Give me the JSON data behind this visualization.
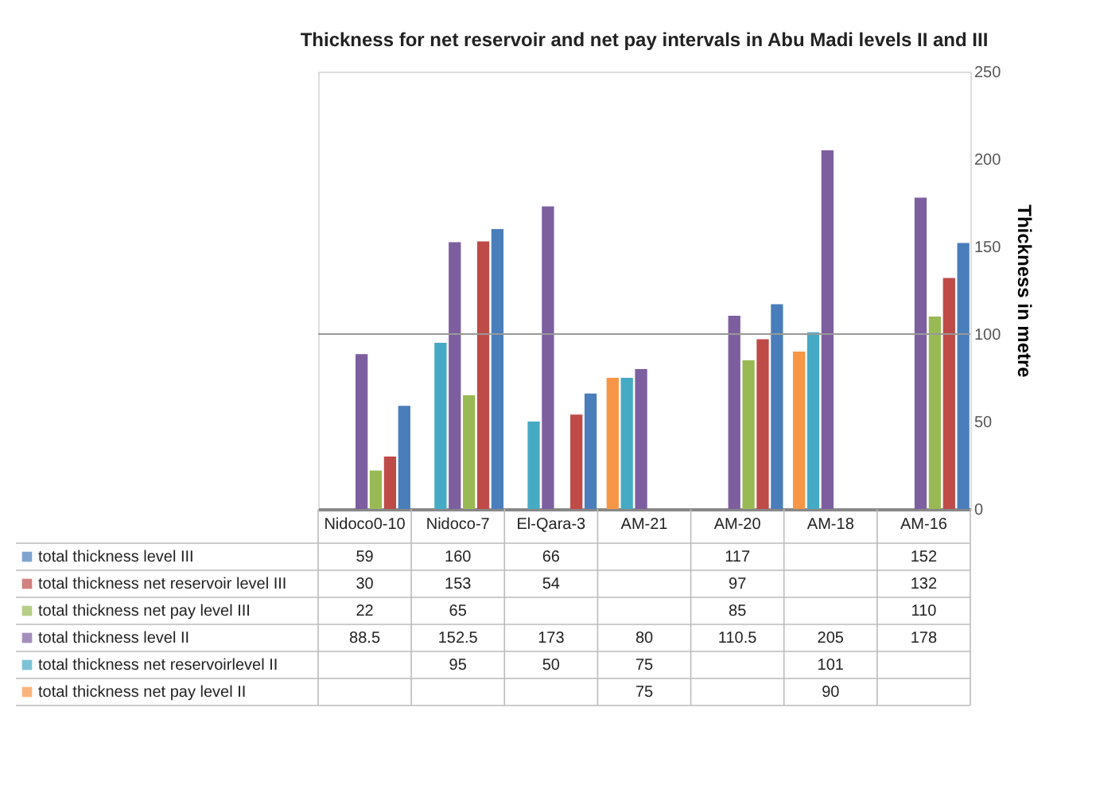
{
  "chart_data": {
    "type": "bar",
    "title": "Thickness for net reservoir and net pay intervals in Abu Madi levels II and III",
    "categories": [
      "Nidoco0-10",
      "Nidoco-7",
      "El-Qara-3",
      "AM-21",
      "AM-20",
      "AM-18",
      "AM-16"
    ],
    "series": [
      {
        "name": "total thickness level III",
        "color": "#4a7ebb",
        "values": [
          59,
          160,
          66,
          null,
          117,
          null,
          152
        ]
      },
      {
        "name": "total thickness net reservoir level III",
        "color": "#be4b48",
        "values": [
          30,
          153,
          54,
          null,
          97,
          null,
          132
        ]
      },
      {
        "name": "total thickness net pay  level III",
        "color": "#98b954",
        "values": [
          22,
          65,
          null,
          null,
          85,
          null,
          110
        ]
      },
      {
        "name": "total thickness level II",
        "color": "#7d5fa0",
        "values": [
          88.5,
          152.5,
          173,
          80,
          110.5,
          205,
          178
        ]
      },
      {
        "name": "total thickness  net reservoirlevel II",
        "color": "#46aac5",
        "values": [
          null,
          95,
          50,
          75,
          null,
          101,
          null
        ]
      },
      {
        "name": "total thickness net pay  level II",
        "color": "#f79646",
        "values": [
          null,
          null,
          null,
          75,
          null,
          90,
          null
        ]
      }
    ],
    "ylabel": "Thickness in metre",
    "ylim": [
      0,
      250
    ],
    "yticks": [
      0,
      50,
      100,
      150,
      200,
      250
    ],
    "grid": false,
    "ref_lines": [
      {
        "axis": "y",
        "value": 100
      }
    ],
    "data_labels": true,
    "legend": "bottom"
  }
}
